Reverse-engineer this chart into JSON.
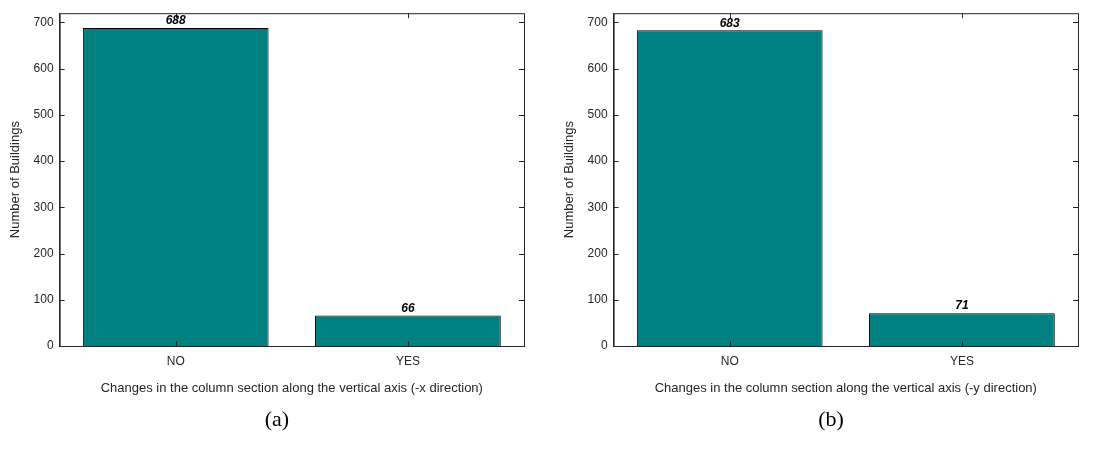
{
  "chart_data": [
    {
      "type": "bar",
      "categories": [
        "NO",
        "YES"
      ],
      "values": [
        688,
        66
      ],
      "color": "#008080",
      "ylim": [
        0,
        720
      ],
      "yticks": [
        0,
        100,
        200,
        300,
        400,
        500,
        600,
        700
      ],
      "ylabel": "Number of Buildings",
      "xlabel": "Changes in the column section along the vertical axis (-x direction)",
      "data_labels": true,
      "grid": false,
      "legend": false,
      "annotations": [
        "(a)"
      ]
    },
    {
      "type": "bar",
      "categories": [
        "NO",
        "YES"
      ],
      "values": [
        683,
        71
      ],
      "color": "#008080",
      "ylim": [
        0,
        720
      ],
      "yticks": [
        0,
        100,
        200,
        300,
        400,
        500,
        600,
        700
      ],
      "ylabel": "Number of Buildings",
      "xlabel": "Changes in the column section along the vertical axis (-y direction)",
      "data_labels": true,
      "grid": false,
      "legend": false,
      "annotations": [
        "(b)"
      ]
    }
  ]
}
